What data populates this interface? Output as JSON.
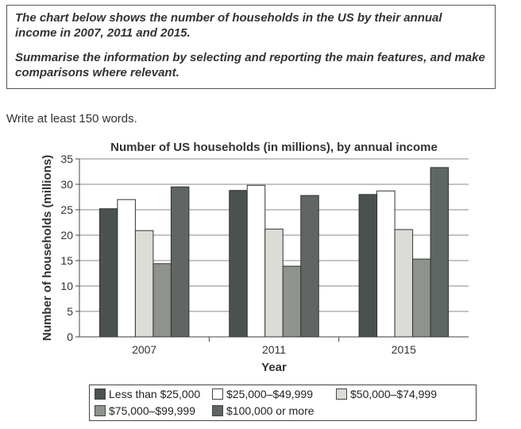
{
  "prompt": {
    "line1": "The chart below shows the number of households in the US by their annual income in 2007, 2011 and 2015.",
    "line2": "Summarise the information by selecting and reporting the main features, and make comparisons where relevant."
  },
  "instruction": "Write at least 150 words.",
  "chart_data": {
    "type": "bar",
    "title": "Number of US households (in millions), by annual income",
    "xlabel": "Year",
    "ylabel": "Number of households (millions)",
    "ylim": [
      0,
      35
    ],
    "yticks": [
      0,
      5,
      10,
      15,
      20,
      25,
      30,
      35
    ],
    "categories": [
      "2007",
      "2011",
      "2015"
    ],
    "series": [
      {
        "name": "Less than $25,000",
        "color": "#4a514f",
        "values": [
          25.2,
          28.8,
          28.0
        ]
      },
      {
        "name": "$25,000–$49,999",
        "color": "#ffffff",
        "values": [
          27.0,
          29.8,
          28.7
        ]
      },
      {
        "name": "$50,000–$74,999",
        "color": "#dcdcd6",
        "values": [
          20.9,
          21.2,
          21.1
        ]
      },
      {
        "name": "$75,000–$99,999",
        "color": "#8f938e",
        "values": [
          14.4,
          13.9,
          15.3
        ]
      },
      {
        "name": "$100,000 or more",
        "color": "#5f6663",
        "values": [
          29.5,
          27.8,
          33.3
        ]
      }
    ],
    "grid": true,
    "legend": "bottom"
  }
}
